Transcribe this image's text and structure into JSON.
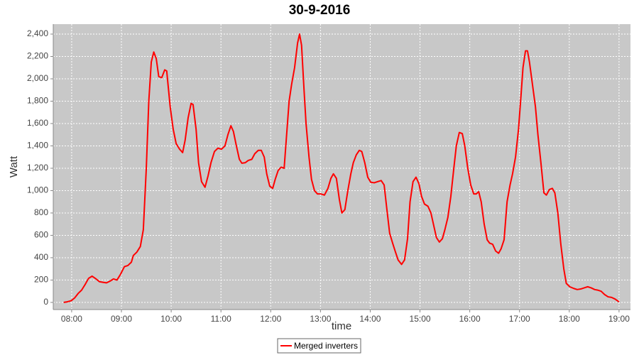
{
  "chart_data": {
    "type": "line",
    "title": "30-9-2016",
    "x_label": "time",
    "y_label": "Watt",
    "x": [
      7.84,
      7.91,
      7.99,
      8.06,
      8.13,
      8.2,
      8.27,
      8.34,
      8.41,
      8.49,
      8.56,
      8.63,
      8.7,
      8.77,
      8.84,
      8.91,
      8.98,
      9.06,
      9.13,
      9.2,
      9.24,
      9.31,
      9.38,
      9.44,
      9.5,
      9.55,
      9.6,
      9.65,
      9.7,
      9.75,
      9.81,
      9.87,
      9.91,
      9.98,
      10.04,
      10.1,
      10.17,
      10.23,
      10.28,
      10.34,
      10.4,
      10.44,
      10.5,
      10.55,
      10.61,
      10.68,
      10.74,
      10.8,
      10.87,
      10.94,
      11.01,
      11.08,
      11.14,
      11.2,
      11.25,
      11.31,
      11.37,
      11.42,
      11.49,
      11.55,
      11.62,
      11.68,
      11.75,
      11.81,
      11.87,
      11.92,
      11.98,
      12.04,
      12.09,
      12.15,
      12.21,
      12.27,
      12.32,
      12.37,
      12.42,
      12.48,
      12.54,
      12.58,
      12.62,
      12.67,
      12.71,
      12.77,
      12.82,
      12.88,
      12.94,
      13.01,
      13.08,
      13.15,
      13.21,
      13.26,
      13.32,
      13.38,
      13.43,
      13.49,
      13.55,
      13.61,
      13.66,
      13.72,
      13.78,
      13.83,
      13.89,
      13.95,
      14.01,
      14.08,
      14.15,
      14.22,
      14.28,
      14.33,
      14.39,
      14.45,
      14.5,
      14.56,
      14.63,
      14.69,
      14.75,
      14.8,
      14.86,
      14.92,
      14.98,
      15.03,
      15.09,
      15.16,
      15.22,
      15.28,
      15.33,
      15.39,
      15.45,
      15.5,
      15.56,
      15.62,
      15.68,
      15.73,
      15.79,
      15.85,
      15.9,
      15.96,
      16.02,
      16.08,
      16.13,
      16.18,
      16.23,
      16.29,
      16.35,
      16.4,
      16.46,
      16.52,
      16.58,
      16.63,
      16.69,
      16.75,
      16.81,
      16.86,
      16.92,
      16.98,
      17.03,
      17.07,
      17.12,
      17.16,
      17.2,
      17.26,
      17.32,
      17.37,
      17.43,
      17.49,
      17.54,
      17.6,
      17.66,
      17.71,
      17.77,
      17.83,
      17.89,
      17.94,
      18.01,
      18.09,
      18.16,
      18.23,
      18.3,
      18.37,
      18.44,
      18.51,
      18.57,
      18.64,
      18.71,
      18.78,
      18.85,
      18.92,
      19.0
    ],
    "series": [
      {
        "name": "Merged inverters",
        "color": "#ff0000",
        "values": [
          0,
          5,
          15,
          40,
          80,
          110,
          160,
          215,
          235,
          210,
          185,
          180,
          175,
          190,
          210,
          200,
          250,
          320,
          330,
          360,
          420,
          450,
          500,
          650,
          1200,
          1800,
          2150,
          2240,
          2180,
          2020,
          2010,
          2080,
          2070,
          1750,
          1550,
          1420,
          1370,
          1340,
          1450,
          1650,
          1780,
          1770,
          1550,
          1250,
          1080,
          1030,
          1130,
          1250,
          1350,
          1380,
          1370,
          1400,
          1500,
          1580,
          1530,
          1400,
          1280,
          1245,
          1250,
          1270,
          1280,
          1330,
          1360,
          1360,
          1300,
          1150,
          1040,
          1020,
          1100,
          1180,
          1210,
          1200,
          1500,
          1800,
          1950,
          2100,
          2320,
          2400,
          2300,
          1900,
          1600,
          1300,
          1100,
          1000,
          970,
          970,
          960,
          1020,
          1110,
          1150,
          1110,
          920,
          800,
          830,
          1000,
          1150,
          1250,
          1320,
          1360,
          1350,
          1250,
          1120,
          1075,
          1070,
          1080,
          1090,
          1050,
          850,
          620,
          530,
          460,
          380,
          340,
          380,
          570,
          900,
          1080,
          1120,
          1060,
          950,
          880,
          860,
          800,
          680,
          580,
          540,
          570,
          650,
          760,
          950,
          1200,
          1400,
          1520,
          1510,
          1400,
          1200,
          1050,
          970,
          970,
          990,
          900,
          700,
          560,
          530,
          520,
          460,
          440,
          480,
          560,
          900,
          1050,
          1150,
          1300,
          1550,
          1850,
          2100,
          2250,
          2250,
          2150,
          1950,
          1750,
          1500,
          1250,
          980,
          960,
          1010,
          1020,
          980,
          800,
          520,
          300,
          170,
          140,
          125,
          115,
          120,
          130,
          140,
          130,
          115,
          110,
          100,
          70,
          50,
          45,
          30,
          5
        ]
      }
    ],
    "xlim": [
      7.63,
      19.23
    ],
    "xticks": [
      {
        "value": 8,
        "label": "08:00"
      },
      {
        "value": 9,
        "label": "09:00"
      },
      {
        "value": 10,
        "label": "10:00"
      },
      {
        "value": 11,
        "label": "11:00"
      },
      {
        "value": 12,
        "label": "12:00"
      },
      {
        "value": 13,
        "label": "13:00"
      },
      {
        "value": 14,
        "label": "14:00"
      },
      {
        "value": 15,
        "label": "15:00"
      },
      {
        "value": 16,
        "label": "16:00"
      },
      {
        "value": 17,
        "label": "17:00"
      },
      {
        "value": 18,
        "label": "18:00"
      },
      {
        "value": 19,
        "label": "19:00"
      }
    ],
    "ylim": [
      -64,
      2489
    ],
    "yticks": [
      0,
      200,
      400,
      600,
      800,
      {
        "value": 1000,
        "label": "1,000"
      },
      {
        "value": 1200,
        "label": "1,200"
      },
      {
        "value": 1400,
        "label": "1,400"
      },
      {
        "value": 1600,
        "label": "1,600"
      },
      {
        "value": 1800,
        "label": "1,800"
      },
      {
        "value": 2000,
        "label": "2,000"
      },
      {
        "value": 2200,
        "label": "2,200"
      },
      {
        "value": 2400,
        "label": "2,400"
      }
    ],
    "grid": true,
    "legend": "bottom"
  }
}
